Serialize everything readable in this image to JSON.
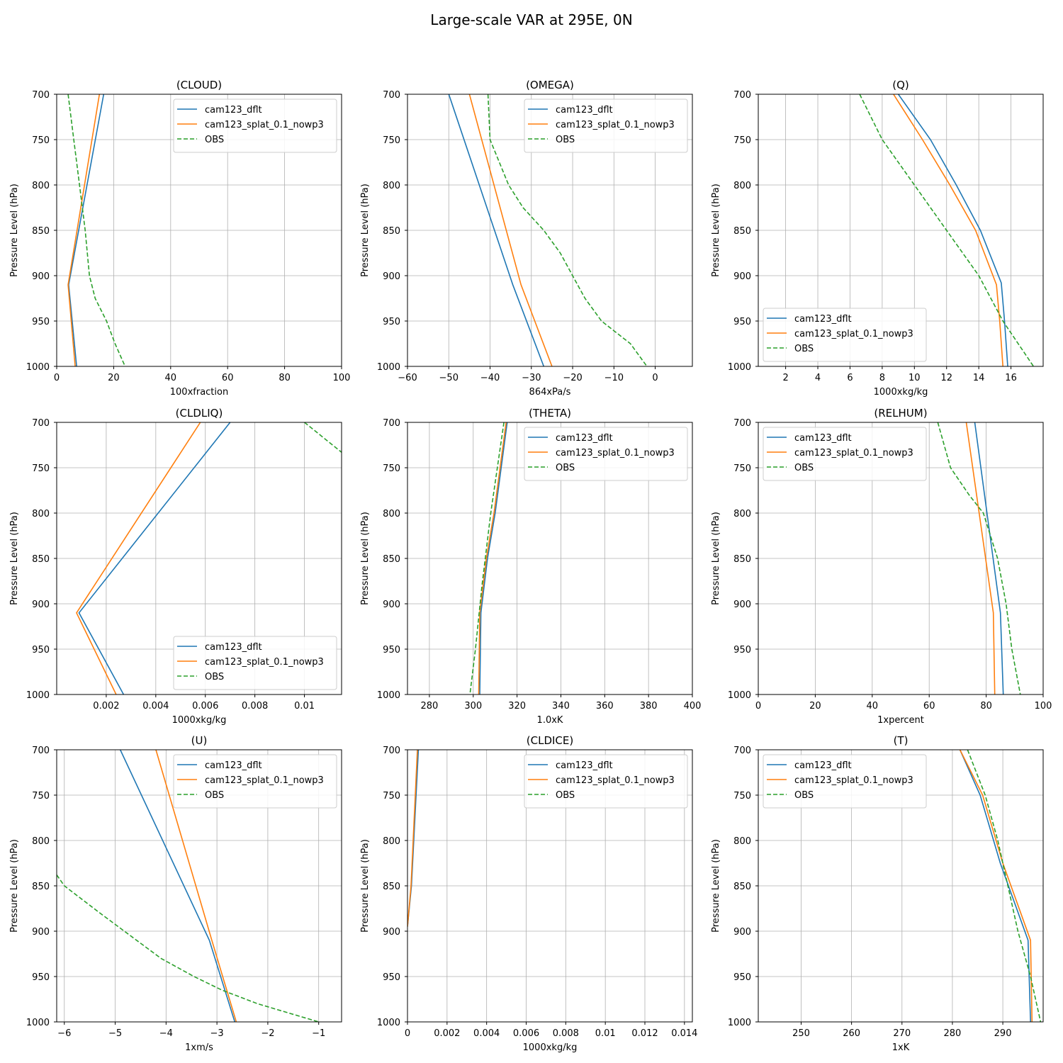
{
  "title": "Large-scale VAR at 295E, 0N",
  "colors": {
    "dflt": "#1f77b4",
    "splat": "#ff7f0e",
    "obs": "#2ca02c",
    "grid": "#b0b0b0"
  },
  "chart_data": [
    {
      "type": "line",
      "title": "(CLOUD)",
      "xlabel": "100xfraction",
      "ylabel": "Pressure Level (hPa)",
      "xlim": [
        0,
        100
      ],
      "ylim": [
        1000,
        700
      ],
      "xticks": [
        0,
        20,
        40,
        60,
        80,
        100
      ],
      "yticks": [
        700,
        750,
        800,
        850,
        900,
        950,
        1000
      ],
      "legend": "top-right",
      "series": [
        {
          "name": "cam123_dflt",
          "style": "solid",
          "points": [
            [
              16.5,
              700
            ],
            [
              4.2,
              910
            ],
            [
              7,
              1000
            ]
          ]
        },
        {
          "name": "cam123_splat_0.1_nowp3",
          "style": "solid",
          "points": [
            [
              15,
              700
            ],
            [
              4,
              910
            ],
            [
              6.5,
              1000
            ]
          ]
        },
        {
          "name": "OBS",
          "style": "dashed",
          "points": [
            [
              4,
              700
            ],
            [
              6,
              750
            ],
            [
              8,
              800
            ],
            [
              10,
              850
            ],
            [
              11.5,
              900
            ],
            [
              13.5,
              925
            ],
            [
              17.5,
              950
            ],
            [
              20.5,
              975
            ],
            [
              24,
              1000
            ]
          ]
        }
      ]
    },
    {
      "type": "line",
      "title": "(OMEGA)",
      "xlabel": "864xPa/s",
      "ylabel": "Pressure Level (hPa)",
      "xlim": [
        -60,
        9
      ],
      "ylim": [
        1000,
        700
      ],
      "xticks": [
        -60,
        -50,
        -40,
        -30,
        -20,
        -10,
        0
      ],
      "yticks": [
        700,
        750,
        800,
        850,
        900,
        950,
        1000
      ],
      "legend": "top-right",
      "series": [
        {
          "name": "cam123_dflt",
          "style": "solid",
          "points": [
            [
              -50,
              700
            ],
            [
              -34.5,
              910
            ],
            [
              -27,
              1000
            ]
          ]
        },
        {
          "name": "cam123_splat_0.1_nowp3",
          "style": "solid",
          "points": [
            [
              -45,
              700
            ],
            [
              -32.5,
              910
            ],
            [
              -25,
              1000
            ]
          ]
        },
        {
          "name": "OBS",
          "style": "dashed",
          "points": [
            [
              -40.5,
              700
            ],
            [
              -40,
              750
            ],
            [
              -35.5,
              800
            ],
            [
              -32,
              825
            ],
            [
              -27,
              850
            ],
            [
              -23,
              875
            ],
            [
              -20,
              900
            ],
            [
              -17,
              925
            ],
            [
              -13,
              950
            ],
            [
              -6,
              975
            ],
            [
              -2,
              1000
            ]
          ]
        }
      ]
    },
    {
      "type": "line",
      "title": "(Q)",
      "xlabel": "1000xkg/kg",
      "ylabel": "Pressure Level (hPa)",
      "xlim": [
        0.3,
        18
      ],
      "ylim": [
        1000,
        700
      ],
      "xticks": [
        2,
        4,
        6,
        8,
        10,
        12,
        14,
        16
      ],
      "yticks": [
        700,
        750,
        800,
        850,
        900,
        950,
        1000
      ],
      "legend": "bottom-left",
      "series": [
        {
          "name": "cam123_dflt",
          "style": "solid",
          "points": [
            [
              9,
              700
            ],
            [
              11,
              750
            ],
            [
              12.6,
              800
            ],
            [
              14.1,
              850
            ],
            [
              15.4,
              908
            ],
            [
              15.6,
              950
            ],
            [
              15.8,
              1000
            ]
          ]
        },
        {
          "name": "cam123_splat_0.1_nowp3",
          "style": "solid",
          "points": [
            [
              8.7,
              700
            ],
            [
              10.5,
              750
            ],
            [
              12.2,
              800
            ],
            [
              13.8,
              850
            ],
            [
              15.1,
              910
            ],
            [
              15.3,
              950
            ],
            [
              15.5,
              1000
            ]
          ]
        },
        {
          "name": "OBS",
          "style": "dashed",
          "points": [
            [
              6.6,
              700
            ],
            [
              8,
              750
            ],
            [
              10,
              800
            ],
            [
              12,
              850
            ],
            [
              14,
              900
            ],
            [
              15.5,
              950
            ],
            [
              17.4,
              1000
            ]
          ]
        }
      ]
    },
    {
      "type": "line",
      "title": "(CLDLIQ)",
      "xlabel": "1000xkg/kg",
      "ylabel": "Pressure Level (hPa)",
      "xlim": [
        0,
        0.0115
      ],
      "ylim": [
        1000,
        700
      ],
      "xticks": [
        0.002,
        0.004,
        0.006,
        0.008,
        0.01
      ],
      "yticks": [
        700,
        750,
        800,
        850,
        900,
        950,
        1000
      ],
      "legend": "bottom-right",
      "series": [
        {
          "name": "cam123_dflt",
          "style": "solid",
          "points": [
            [
              0.007,
              700
            ],
            [
              0.0009,
              910
            ],
            [
              0.0027,
              1000
            ]
          ]
        },
        {
          "name": "cam123_splat_0.1_nowp3",
          "style": "solid",
          "points": [
            [
              0.0058,
              700
            ],
            [
              0.0008,
              910
            ],
            [
              0.0024,
              1000
            ]
          ]
        },
        {
          "name": "OBS",
          "style": "dashed",
          "points": [
            [
              0.01,
              700
            ],
            [
              0.0115,
              733
            ]
          ]
        }
      ]
    },
    {
      "type": "line",
      "title": "(THETA)",
      "xlabel": "1.0xK",
      "ylabel": "Pressure Level (hPa)",
      "xlim": [
        270,
        400
      ],
      "ylim": [
        1000,
        700
      ],
      "xticks": [
        280,
        300,
        320,
        340,
        360,
        380,
        400
      ],
      "yticks": [
        700,
        750,
        800,
        850,
        900,
        950,
        1000
      ],
      "legend": "top-right",
      "series": [
        {
          "name": "cam123_dflt",
          "style": "solid",
          "points": [
            [
              315.5,
              700
            ],
            [
              310,
              800
            ],
            [
              306.5,
              850
            ],
            [
              303.5,
              910
            ],
            [
              303,
              1000
            ]
          ]
        },
        {
          "name": "cam123_splat_0.1_nowp3",
          "style": "solid",
          "points": [
            [
              315,
              700
            ],
            [
              309.5,
              800
            ],
            [
              306,
              850
            ],
            [
              303,
              910
            ],
            [
              302.5,
              1000
            ]
          ]
        },
        {
          "name": "OBS",
          "style": "dashed",
          "points": [
            [
              314,
              700
            ],
            [
              308,
              800
            ],
            [
              304,
              880
            ],
            [
              301,
              950
            ],
            [
              298.5,
              1000
            ]
          ]
        }
      ]
    },
    {
      "type": "line",
      "title": "(RELHUM)",
      "xlabel": "1xpercent",
      "ylabel": "Pressure Level (hPa)",
      "xlim": [
        0,
        100
      ],
      "ylim": [
        1000,
        700
      ],
      "xticks": [
        0,
        20,
        40,
        60,
        80,
        100
      ],
      "yticks": [
        700,
        750,
        800,
        850,
        900,
        950,
        1000
      ],
      "legend": "top-left",
      "series": [
        {
          "name": "cam123_dflt",
          "style": "solid",
          "points": [
            [
              76,
              700
            ],
            [
              85,
              910
            ],
            [
              86,
              1000
            ]
          ]
        },
        {
          "name": "cam123_splat_0.1_nowp3",
          "style": "solid",
          "points": [
            [
              73,
              700
            ],
            [
              82.5,
              910
            ],
            [
              83,
              1000
            ]
          ]
        },
        {
          "name": "OBS",
          "style": "dashed",
          "points": [
            [
              63,
              700
            ],
            [
              67.5,
              750
            ],
            [
              74,
              780
            ],
            [
              79,
              800
            ],
            [
              84,
              850
            ],
            [
              87,
              900
            ],
            [
              89,
              950
            ],
            [
              92,
              1000
            ]
          ]
        }
      ]
    },
    {
      "type": "line",
      "title": "(U)",
      "xlabel": "1xm/s",
      "ylabel": "Pressure Level (hPa)",
      "xlim": [
        -6.15,
        -0.55
      ],
      "ylim": [
        1000,
        700
      ],
      "xticks": [
        -6,
        -5,
        -4,
        -3,
        -2,
        -1
      ],
      "yticks": [
        700,
        750,
        800,
        850,
        900,
        950,
        1000
      ],
      "legend": "top-right",
      "series": [
        {
          "name": "cam123_dflt",
          "style": "solid",
          "points": [
            [
              -4.9,
              700
            ],
            [
              -3.15,
              910
            ],
            [
              -2.65,
              1000
            ]
          ]
        },
        {
          "name": "cam123_splat_0.1_nowp3",
          "style": "solid",
          "points": [
            [
              -4.2,
              700
            ],
            [
              -3.1,
              910
            ],
            [
              -2.62,
              1000
            ]
          ]
        },
        {
          "name": "OBS",
          "style": "dashed",
          "points": [
            [
              -6.15,
              838
            ],
            [
              -6,
              850
            ],
            [
              -5.3,
              880
            ],
            [
              -4.7,
              905
            ],
            [
              -4.1,
              930
            ],
            [
              -3.45,
              950
            ],
            [
              -2.9,
              965
            ],
            [
              -2.2,
              980
            ],
            [
              -1.6,
              990
            ],
            [
              -1,
              1000
            ]
          ]
        }
      ]
    },
    {
      "type": "line",
      "title": "(CLDICE)",
      "xlabel": "1000xkg/kg",
      "ylabel": "Pressure Level (hPa)",
      "xlim": [
        0,
        0.0144
      ],
      "ylim": [
        1000,
        700
      ],
      "xticks": [
        0.0,
        0.002,
        0.004,
        0.006,
        0.008,
        0.01,
        0.012,
        0.014
      ],
      "yticks": [
        700,
        750,
        800,
        850,
        900,
        950,
        1000
      ],
      "legend": "top-right",
      "series": [
        {
          "name": "cam123_dflt",
          "style": "solid",
          "points": [
            [
              0.00055,
              700
            ],
            [
              0.0002,
              850
            ],
            [
              0,
              895
            ]
          ]
        },
        {
          "name": "cam123_splat_0.1_nowp3",
          "style": "solid",
          "points": [
            [
              0.0005,
              700
            ],
            [
              0.00018,
              850
            ],
            [
              0,
              895
            ]
          ]
        },
        {
          "name": "OBS",
          "style": "dashed",
          "points": []
        }
      ]
    },
    {
      "type": "line",
      "title": "(T)",
      "xlabel": "1xK",
      "ylabel": "Pressure Level (hPa)",
      "xlim": [
        241.5,
        298
      ],
      "ylim": [
        1000,
        700
      ],
      "xticks": [
        250,
        260,
        270,
        280,
        290
      ],
      "yticks": [
        700,
        750,
        800,
        850,
        900,
        950,
        1000
      ],
      "legend": "top-left",
      "series": [
        {
          "name": "cam123_dflt",
          "style": "solid",
          "points": [
            [
              281.5,
              700
            ],
            [
              285.5,
              750
            ],
            [
              289.5,
              825
            ],
            [
              295,
              910
            ],
            [
              295.5,
              1000
            ]
          ]
        },
        {
          "name": "cam123_splat_0.1_nowp3",
          "style": "solid",
          "points": [
            [
              281.5,
              700
            ],
            [
              286,
              750
            ],
            [
              290,
              825
            ],
            [
              295.5,
              910
            ],
            [
              295.8,
              1000
            ]
          ]
        },
        {
          "name": "OBS",
          "style": "dashed",
          "points": [
            [
              283,
              700
            ],
            [
              286.5,
              750
            ],
            [
              289,
              800
            ],
            [
              291,
              850
            ],
            [
              293,
              900
            ],
            [
              295.5,
              950
            ],
            [
              297.5,
              1000
            ]
          ]
        }
      ]
    }
  ]
}
